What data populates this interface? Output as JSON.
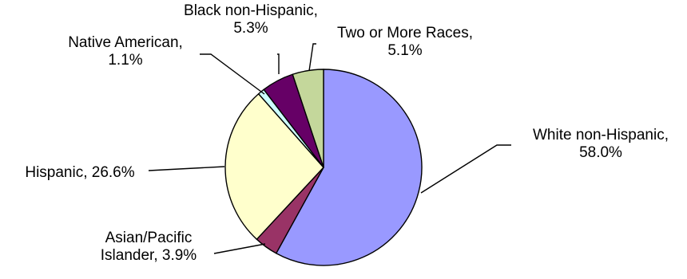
{
  "chart_data": {
    "type": "pie",
    "title": "",
    "start_angle_deg": 0,
    "direction": "clockwise",
    "legend": "none",
    "slices": [
      {
        "label": "White non-Hispanic",
        "value": 58.0,
        "value_text": "58.0%",
        "color": "#9999ff"
      },
      {
        "label": "Asian/Pacific Islander",
        "value": 3.9,
        "value_text": "3.9%",
        "color": "#993366"
      },
      {
        "label": "Hispanic",
        "value": 26.6,
        "value_text": "26.6%",
        "color": "#ffffcc"
      },
      {
        "label": "Native American",
        "value": 1.1,
        "value_text": "1.1%",
        "color": "#ccffff"
      },
      {
        "label": "Black non-Hispanic",
        "value": 5.3,
        "value_text": "5.3%",
        "color": "#660066"
      },
      {
        "label": "Two or More Races",
        "value": 5.1,
        "value_text": "5.1%",
        "color": "#c4d79b"
      }
    ],
    "data_labels": [
      {
        "lines": [
          "White non-Hispanic,",
          "58.0%"
        ]
      },
      {
        "lines": [
          "Asian/Pacific",
          "Islander, 3.9%"
        ]
      },
      {
        "lines": [
          "Hispanic, 26.6%"
        ]
      },
      {
        "lines": [
          "Native American,",
          "1.1%"
        ]
      },
      {
        "lines": [
          "Black non-Hispanic,",
          "5.3%"
        ]
      },
      {
        "lines": [
          "Two or More Races,",
          "5.1%"
        ]
      }
    ]
  }
}
